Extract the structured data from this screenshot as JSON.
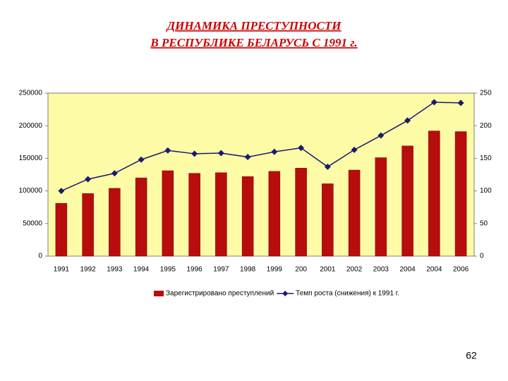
{
  "chart_data": {
    "type": "combo",
    "title": "ДИНАМИКА ПРЕСТУПНОСТИ",
    "subtitle": "В РЕСПУБЛИКЕ БЕЛАРУСЬ С 1991 г.",
    "categories": [
      "1991",
      "1992",
      "1993",
      "1994",
      "1995",
      "1996",
      "1997",
      "1998",
      "1999",
      "200",
      "2001",
      "2002",
      "2003",
      "2004",
      "2004",
      "2006"
    ],
    "series": [
      {
        "name": "Зарегистрировано преступлений",
        "type": "bar",
        "color": "#b80d0d",
        "values": [
          81000,
          96000,
          104000,
          120000,
          131000,
          127000,
          128000,
          122000,
          130000,
          135000,
          111000,
          132000,
          151000,
          169000,
          192000,
          191000
        ]
      },
      {
        "name": "Темп роста (снижения) к 1991 г.",
        "type": "line",
        "axis": "y2",
        "color": "#1a1a6e",
        "values": [
          100,
          118,
          127,
          148,
          162,
          157,
          158,
          152,
          160,
          166,
          137,
          163,
          185,
          208,
          236,
          235
        ]
      }
    ],
    "ylim": [
      0,
      250000
    ],
    "yticks": [
      0,
      50000,
      100000,
      150000,
      200000,
      250000
    ],
    "y2lim": [
      0,
      250
    ],
    "y2ticks": [
      0,
      50,
      100,
      150,
      200,
      250
    ],
    "grid": false,
    "legend": "bottom",
    "page_number": "62"
  }
}
